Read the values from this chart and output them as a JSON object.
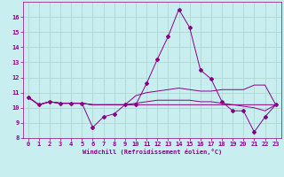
{
  "xlabel": "Windchill (Refroidissement éolien,°C)",
  "background_color": "#c8eef0",
  "grid_color": "#b0d8d0",
  "line_color": "#880088",
  "xlim": [
    -0.5,
    23.5
  ],
  "ylim": [
    8,
    17
  ],
  "yticks": [
    8,
    9,
    10,
    11,
    12,
    13,
    14,
    15,
    16
  ],
  "xticks": [
    0,
    1,
    2,
    3,
    4,
    5,
    6,
    7,
    8,
    9,
    10,
    11,
    12,
    13,
    14,
    15,
    16,
    17,
    18,
    19,
    20,
    21,
    22,
    23
  ],
  "series": [
    [
      10.7,
      10.2,
      10.4,
      10.3,
      10.3,
      10.3,
      8.7,
      9.4,
      9.6,
      10.2,
      10.2,
      11.6,
      13.2,
      14.7,
      16.5,
      15.3,
      12.5,
      11.9,
      10.4,
      9.8,
      9.8,
      8.4,
      9.4,
      10.2
    ],
    [
      10.7,
      10.2,
      10.4,
      10.3,
      10.3,
      10.3,
      10.2,
      10.2,
      10.2,
      10.2,
      10.8,
      11.0,
      11.1,
      11.2,
      11.3,
      11.2,
      11.1,
      11.1,
      11.2,
      11.2,
      11.2,
      11.5,
      11.5,
      10.2
    ],
    [
      10.7,
      10.2,
      10.4,
      10.3,
      10.3,
      10.3,
      10.2,
      10.2,
      10.2,
      10.2,
      10.3,
      10.4,
      10.5,
      10.5,
      10.5,
      10.5,
      10.4,
      10.4,
      10.3,
      10.2,
      10.1,
      10.0,
      9.8,
      10.2
    ],
    [
      10.7,
      10.2,
      10.4,
      10.3,
      10.3,
      10.3,
      10.2,
      10.2,
      10.2,
      10.2,
      10.2,
      10.2,
      10.2,
      10.2,
      10.2,
      10.2,
      10.2,
      10.2,
      10.2,
      10.2,
      10.2,
      10.2,
      10.2,
      10.2
    ]
  ],
  "marker_series": 0,
  "marker": "D",
  "marker_size": 2.0
}
